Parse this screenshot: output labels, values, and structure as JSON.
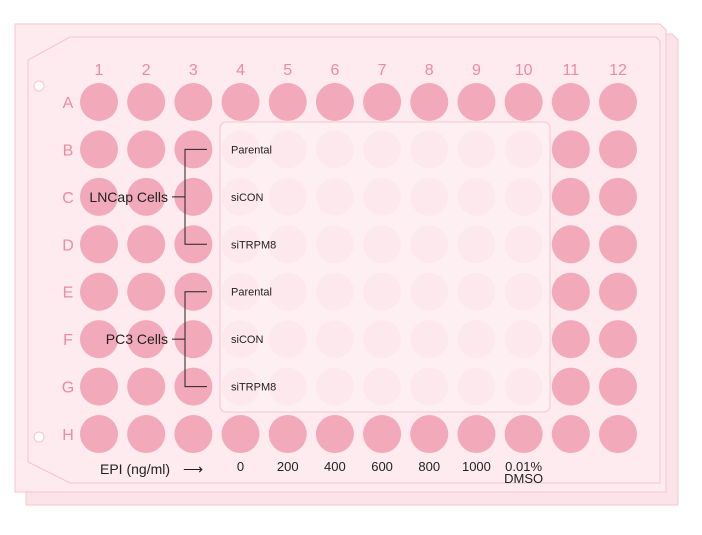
{
  "colors": {
    "plate_fill": "#fdebef",
    "plate_back": "#fbe3e9",
    "plate_stroke": "#f5c4cf",
    "well_active": "#f2a9b9",
    "well_faint": "#fbdbe3",
    "label_pink": "#ef8aa0",
    "text_dark": "#222222",
    "overlay_fill": "#fff3f6"
  },
  "columns": [
    "1",
    "2",
    "3",
    "4",
    "5",
    "6",
    "7",
    "8",
    "9",
    "10",
    "11",
    "12"
  ],
  "rows": [
    "A",
    "B",
    "C",
    "D",
    "E",
    "F",
    "G",
    "H"
  ],
  "groups": [
    {
      "name": "LNCap Cells",
      "conditions": [
        "Parental",
        "siCON",
        "siTRPM8"
      ]
    },
    {
      "name": "PC3 Cells",
      "conditions": [
        "Parental",
        "siCON",
        "siTRPM8"
      ]
    }
  ],
  "treatment": {
    "axis_label": "EPI (ng/ml)",
    "arrow": "⟶",
    "doses": [
      "0",
      "200",
      "400",
      "600",
      "800",
      "1000",
      "0.01%\nDMSO"
    ]
  },
  "icons": {
    "corner_marks": "circle-icon"
  }
}
